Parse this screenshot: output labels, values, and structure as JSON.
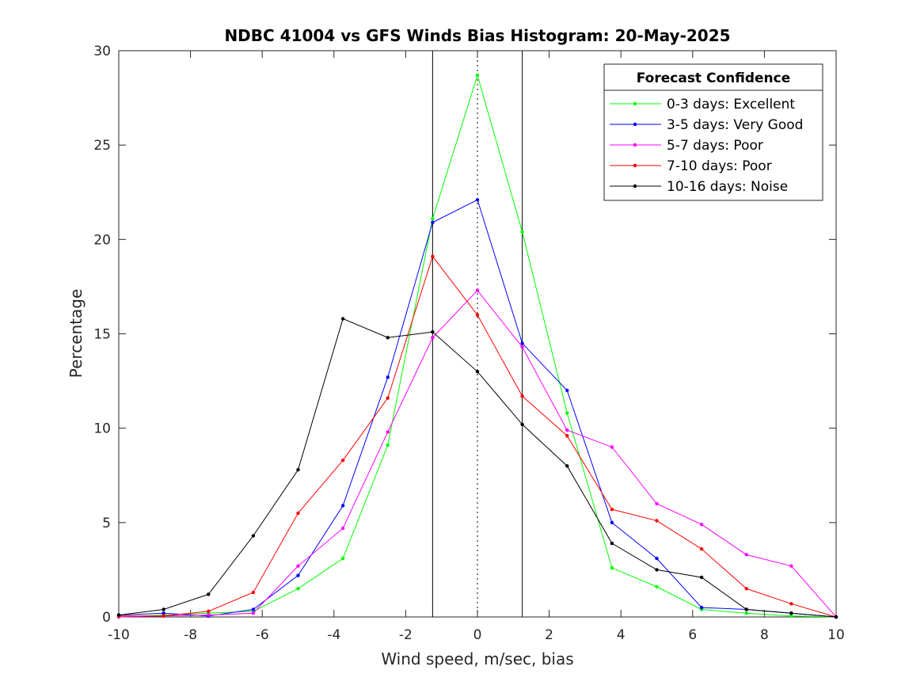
{
  "chart_data": {
    "type": "line",
    "title": "NDBC 41004 vs GFS Winds Bias Histogram: 20-May-2025",
    "xlabel": "Wind speed, m/sec, bias",
    "ylabel": "Percentage",
    "xlim": [
      -10,
      10
    ],
    "ylim": [
      0,
      30
    ],
    "xticks": [
      -10,
      -8,
      -6,
      -4,
      -2,
      0,
      2,
      4,
      6,
      8,
      10
    ],
    "yticks": [
      0,
      5,
      10,
      15,
      20,
      25,
      30
    ],
    "grid": false,
    "legend": {
      "title": "Forecast Confidence",
      "placement": "top-right"
    },
    "x": [
      -10,
      -8.75,
      -7.5,
      -6.25,
      -5,
      -3.75,
      -2.5,
      -1.25,
      0,
      1.25,
      2.5,
      3.75,
      5,
      6.25,
      7.5,
      8.75,
      10
    ],
    "series": [
      {
        "name": "0-3 days: Excellent",
        "color": "#00ff00",
        "values": [
          0,
          0.1,
          0.2,
          0.3,
          1.5,
          3.1,
          9.1,
          21.1,
          28.7,
          20.4,
          10.8,
          2.6,
          1.6,
          0.4,
          0.2,
          0.05,
          0
        ]
      },
      {
        "name": "3-5 days: Very Good",
        "color": "#0000ff",
        "values": [
          0.1,
          0.2,
          0.05,
          0.4,
          2.2,
          5.9,
          12.7,
          20.9,
          22.1,
          14.5,
          12.0,
          5.0,
          3.1,
          0.5,
          0.4,
          0.2,
          0
        ]
      },
      {
        "name": "5-7 days: Poor",
        "color": "#ff00ff",
        "values": [
          0,
          0.05,
          0.1,
          0.2,
          2.7,
          4.7,
          9.8,
          14.8,
          17.3,
          14.3,
          9.9,
          9.0,
          6.0,
          4.9,
          3.3,
          2.7,
          0
        ]
      },
      {
        "name": "7-10 days: Poor",
        "color": "#ff0000",
        "values": [
          0.05,
          0.05,
          0.3,
          1.3,
          5.5,
          8.3,
          11.6,
          19.1,
          16.0,
          11.7,
          9.6,
          5.7,
          5.1,
          3.6,
          1.5,
          0.7,
          0
        ]
      },
      {
        "name": "10-16 days: Noise",
        "color": "#000000",
        "values": [
          0.1,
          0.4,
          1.2,
          4.3,
          7.8,
          15.8,
          14.8,
          15.1,
          13.0,
          10.2,
          8.0,
          3.9,
          2.5,
          2.1,
          0.4,
          0.2,
          0
        ]
      }
    ],
    "reference_lines": [
      {
        "x": -1.25,
        "style": "solid",
        "color": "#000000"
      },
      {
        "x": 0,
        "style": "dotted",
        "color": "#000000"
      },
      {
        "x": 1.25,
        "style": "solid",
        "color": "#000000"
      }
    ]
  }
}
